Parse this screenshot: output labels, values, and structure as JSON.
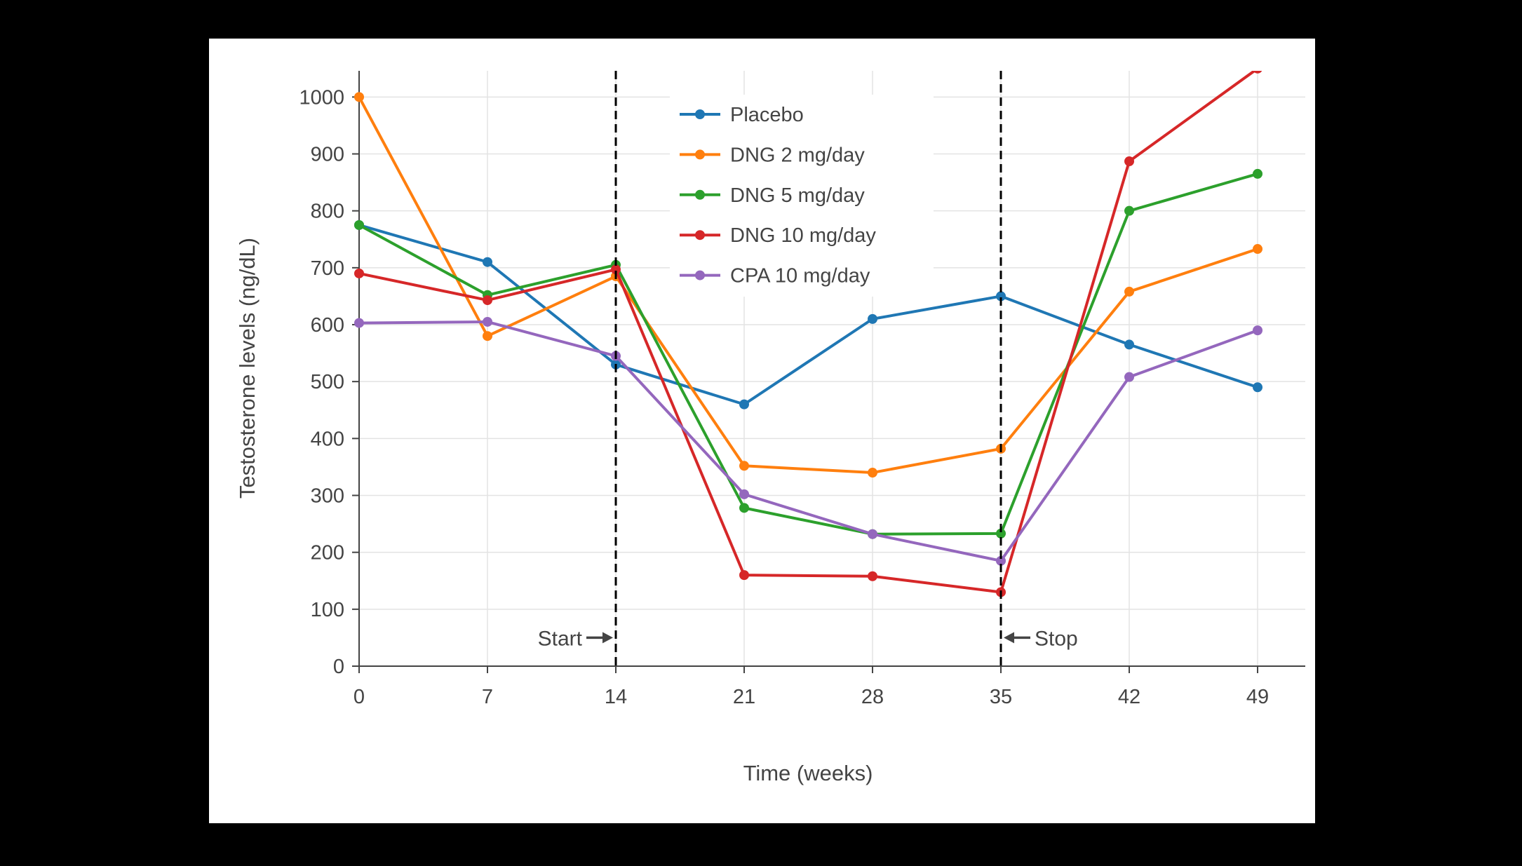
{
  "page": {
    "background": "#000000",
    "panel_background": "#ffffff"
  },
  "chart_data": {
    "type": "line",
    "title": "",
    "xlabel": "Time (weeks)",
    "ylabel": "Testosterone levels (ng/dL)",
    "x": [
      0,
      7,
      14,
      21,
      28,
      35,
      42,
      49
    ],
    "series": [
      {
        "name": "Placebo",
        "color": "#1f77b4",
        "values": [
          775,
          710,
          530,
          460,
          610,
          650,
          565,
          490
        ]
      },
      {
        "name": "DNG 2 mg/day",
        "color": "#ff7f0e",
        "values": [
          1000,
          580,
          685,
          352,
          340,
          382,
          658,
          733
        ]
      },
      {
        "name": "DNG 5 mg/day",
        "color": "#2ca02c",
        "values": [
          775,
          652,
          705,
          278,
          232,
          233,
          800,
          865
        ]
      },
      {
        "name": "DNG 10 mg/day",
        "color": "#d62728",
        "values": [
          690,
          643,
          697,
          160,
          158,
          130,
          887,
          1050
        ]
      },
      {
        "name": "CPA 10 mg/day",
        "color": "#9467bd",
        "values": [
          603,
          605,
          545,
          302,
          232,
          185,
          508,
          590
        ]
      }
    ],
    "xticks": [
      0,
      7,
      14,
      21,
      28,
      35,
      42,
      49
    ],
    "yticks": [
      0,
      100,
      200,
      300,
      400,
      500,
      600,
      700,
      800,
      900,
      1000
    ],
    "xlim": [
      0,
      51.6
    ],
    "ylim": [
      0,
      1046
    ],
    "grid": true,
    "legend_position": "inside-top-center",
    "vlines": [
      {
        "x": 14,
        "style": "dashed"
      },
      {
        "x": 35,
        "style": "dashed"
      }
    ],
    "annotations": [
      {
        "text": "Start",
        "x": 14,
        "y": 50,
        "arrow_direction": "right"
      },
      {
        "text": "Stop",
        "x": 35,
        "y": 50,
        "arrow_direction": "left"
      }
    ],
    "colors": {
      "grid": "#e3e3e3",
      "axis": "#444444",
      "text": "#444444",
      "vline": "#000000",
      "legend_background": "#ffffff"
    }
  }
}
